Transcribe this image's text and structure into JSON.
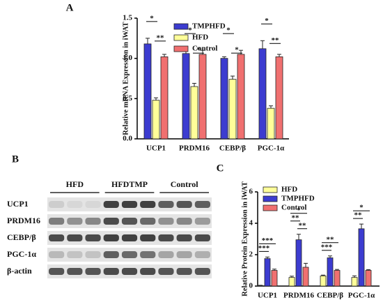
{
  "panels": {
    "a": "A",
    "b": "B",
    "c": "C"
  },
  "blot": {
    "groups": [
      "HFD",
      "HFDTMP",
      "Control"
    ],
    "rows": [
      "UCP1",
      "PRDM16",
      "CEBP/β",
      "PGC-1α",
      "β-actin"
    ]
  },
  "chart_data": [
    {
      "type": "bar",
      "y_label": "Relative mRNA Expression in iWAT",
      "categories": [
        "UCP1",
        "PRDM16",
        "CEBP/β",
        "PGC-1α"
      ],
      "series": [
        {
          "name": "TMPHFD",
          "color": "#3c3cd0",
          "values": [
            1.18,
            1.06,
            1.0,
            1.12
          ],
          "errors": [
            0.07,
            0.04,
            0.02,
            0.1
          ]
        },
        {
          "name": "HFD",
          "color": "#ffff99",
          "values": [
            0.48,
            0.65,
            0.74,
            0.38
          ],
          "errors": [
            0.03,
            0.04,
            0.04,
            0.03
          ]
        },
        {
          "name": "Control",
          "color": "#f07070",
          "values": [
            1.02,
            1.05,
            1.05,
            1.02
          ],
          "errors": [
            0.03,
            0.05,
            0.05,
            0.03
          ]
        }
      ],
      "significance": [
        [
          "*",
          "**"
        ],
        [
          "*",
          "*"
        ],
        [
          "*",
          "*"
        ],
        [
          "*",
          "**"
        ]
      ],
      "ylim": [
        0,
        1.5
      ],
      "yticks": [
        {
          "value": 0,
          "label": "0.0"
        },
        {
          "value": 0.5,
          "label": "0.5"
        },
        {
          "value": 1,
          "label": "1.0"
        },
        {
          "value": 1.5,
          "label": "1.5"
        }
      ],
      "legend": "top"
    },
    {
      "type": "bar",
      "y_label": "Relative Protein Expression in iWAT",
      "categories": [
        "UCP1",
        "PRDM16",
        "CEBP/β",
        "PGC-1α"
      ],
      "series": [
        {
          "name": "HFD",
          "color": "#ffff99",
          "values": [
            0.03,
            0.55,
            0.65,
            0.55
          ],
          "errors": [
            0.02,
            0.08,
            0.05,
            0.1
          ]
        },
        {
          "name": "TMPHFD",
          "color": "#3c3cd0",
          "values": [
            1.75,
            2.95,
            1.8,
            3.65
          ],
          "errors": [
            0.1,
            0.35,
            0.12,
            0.3
          ]
        },
        {
          "name": "Control",
          "color": "#f07070",
          "values": [
            1.0,
            1.2,
            1.0,
            1.0
          ],
          "errors": [
            0.08,
            0.25,
            0.06,
            0.05
          ]
        }
      ],
      "significance": [
        [
          "***",
          "***"
        ],
        [
          "*",
          "**",
          "**"
        ],
        [
          "**",
          "***"
        ],
        [
          "*",
          "**"
        ]
      ],
      "ylim": [
        0,
        6
      ],
      "yticks": [
        0,
        2,
        4,
        6
      ],
      "legend": "top"
    }
  ]
}
